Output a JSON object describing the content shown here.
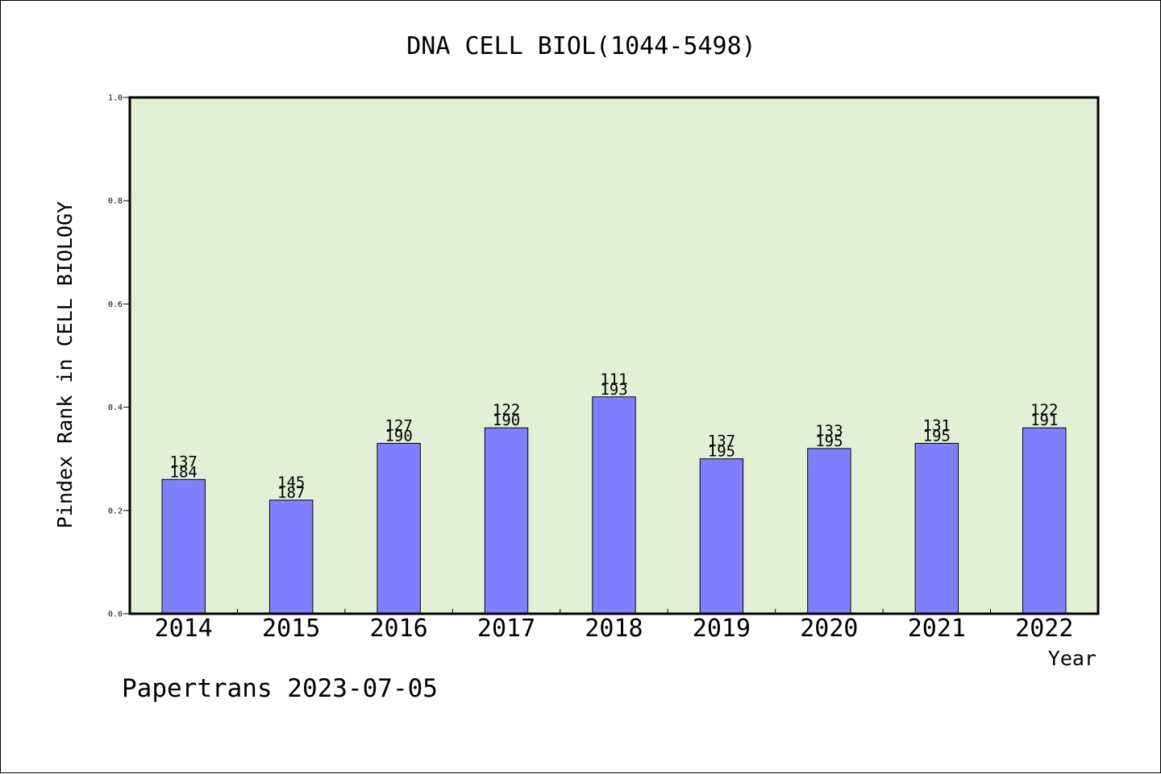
{
  "chart_data": {
    "type": "bar",
    "title": "DNA CELL BIOL(1044-5498)",
    "xlabel": "Year",
    "ylabel": "Pindex Rank in CELL BIOLOGY",
    "ylim": [
      0,
      1.0
    ],
    "yticks": [
      "0.0",
      "0.2",
      "0.4",
      "0.6",
      "0.8",
      "1.0"
    ],
    "categories": [
      "2014",
      "2015",
      "2016",
      "2017",
      "2018",
      "2019",
      "2020",
      "2021",
      "2022"
    ],
    "values": [
      0.26,
      0.22,
      0.33,
      0.36,
      0.42,
      0.3,
      0.32,
      0.33,
      0.36
    ],
    "rank": [
      "137",
      "145",
      "127",
      "122",
      "111",
      "137",
      "133",
      "131",
      "122"
    ],
    "total": [
      "184",
      "187",
      "190",
      "190",
      "193",
      "195",
      "195",
      "195",
      "191"
    ],
    "grid": false,
    "colors": {
      "plot_bg": "#e2f0d6",
      "bar": "#8080ff",
      "axis": "#000000"
    }
  },
  "footer": "Papertrans 2023-07-05"
}
